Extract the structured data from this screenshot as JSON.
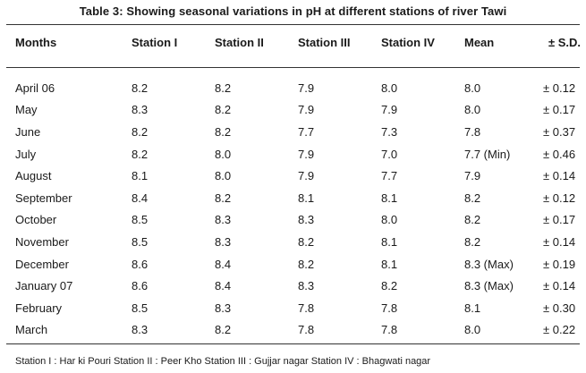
{
  "title": "Table 3:  Showing seasonal variations in pH at different stations of river Tawi",
  "headers": [
    "Months",
    "Station I",
    "Station II",
    "Station III",
    "Station IV",
    "Mean",
    "± S.D."
  ],
  "rows": [
    [
      "April 06",
      "8.2",
      "8.2",
      "7.9",
      "8.0",
      "8.0",
      "± 0.12"
    ],
    [
      "May",
      "8.3",
      "8.2",
      "7.9",
      "7.9",
      "8.0",
      "± 0.17"
    ],
    [
      "June",
      "8.2",
      "8.2",
      "7.7",
      "7.3",
      "7.8",
      "± 0.37"
    ],
    [
      "July",
      "8.2",
      "8.0",
      "7.9",
      "7.0",
      "7.7 (Min)",
      "± 0.46"
    ],
    [
      "August",
      "8.1",
      "8.0",
      "7.9",
      "7.7",
      "7.9",
      "± 0.14"
    ],
    [
      "September",
      "8.4",
      "8.2",
      "8.1",
      "8.1",
      "8.2",
      "± 0.12"
    ],
    [
      "October",
      "8.5",
      "8.3",
      "8.3",
      "8.0",
      "8.2",
      "± 0.17"
    ],
    [
      "November",
      "8.5",
      "8.3",
      "8.2",
      "8.1",
      "8.2",
      "± 0.14"
    ],
    [
      "December",
      "8.6",
      "8.4",
      "8.2",
      "8.1",
      "8.3 (Max)",
      "± 0.19"
    ],
    [
      "January 07",
      "8.6",
      "8.4",
      "8.3",
      "8.2",
      "8.3 (Max)",
      "± 0.14"
    ],
    [
      "February",
      "8.5",
      "8.3",
      "7.8",
      "7.8",
      "8.1",
      "± 0.30"
    ],
    [
      "March",
      "8.3",
      "8.2",
      "7.8",
      "7.8",
      "8.0",
      "± 0.22"
    ]
  ],
  "footnote": "Station I : Har ki Pouri  Station II : Peer Kho Station III :  Gujjar nagar Station IV :  Bhagwati nagar"
}
